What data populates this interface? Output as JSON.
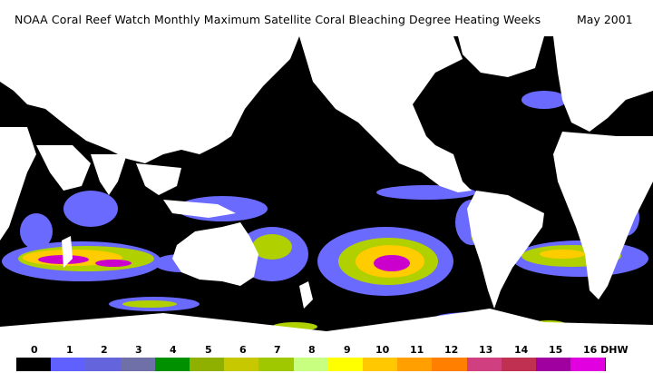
{
  "title": {
    "main": "NOAA Coral Reef Watch Monthly Maximum Satellite Coral Bleaching Degree Heating Weeks",
    "date": "May 2001"
  },
  "colors": {
    "ocean": "#000000",
    "land": "#ffffff",
    "low_dhw": "#6a6aff",
    "mid_dhw": "#b0d000",
    "high_dhw": "#ffcc00",
    "max_dhw": "#cc00cc"
  },
  "legend": {
    "unit": "DHW",
    "labels": [
      "0",
      "1",
      "2",
      "3",
      "4",
      "5",
      "6",
      "7",
      "8",
      "9",
      "10",
      "11",
      "12",
      "13",
      "14",
      "15",
      "16 DHW"
    ],
    "colors": [
      "#000000",
      "#6060ff",
      "#6464dc",
      "#7070a8",
      "#009000",
      "#90b000",
      "#c8c800",
      "#a0c800",
      "#c8ff80",
      "#ffff00",
      "#ffc800",
      "#ffa000",
      "#ff8000",
      "#d04080",
      "#c03050",
      "#a000a0",
      "#e000e0"
    ]
  }
}
